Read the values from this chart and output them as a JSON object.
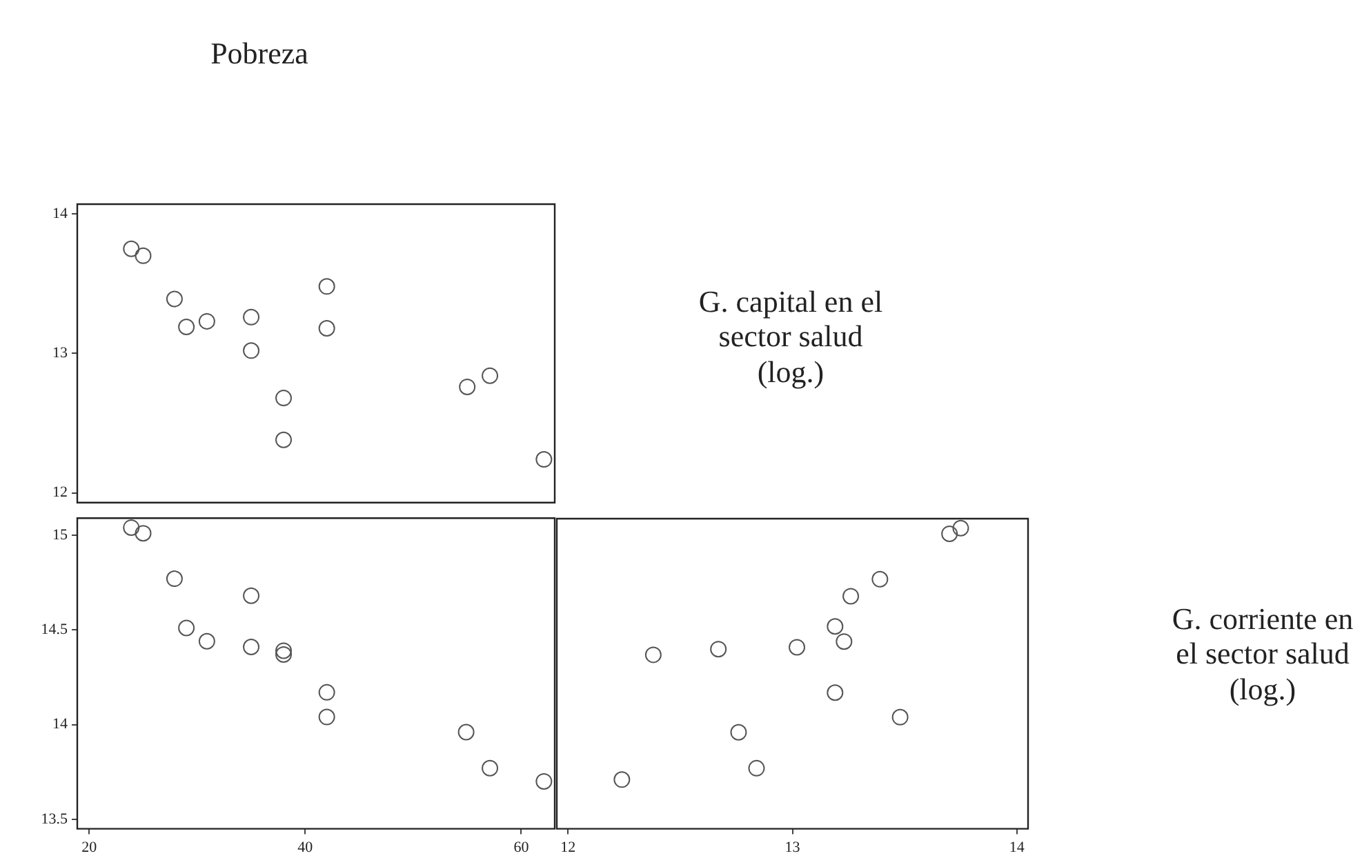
{
  "chart_data": [
    {
      "type": "scatter",
      "title": "Pobreza",
      "ylabel": "G. capital en el sector salud (log.)",
      "marker": "circle",
      "color": "#555555",
      "tick_labels": "y",
      "xlim": [
        18.9,
        63.1
      ],
      "xticks": [
        20,
        40,
        60
      ],
      "ylim": [
        11.93,
        14.07
      ],
      "yticks": [
        12,
        13,
        14
      ],
      "x": [
        23.9,
        25.0,
        27.9,
        29.0,
        30.9,
        35.0,
        35.0,
        38.0,
        38.0,
        42.0,
        42.0,
        55.0,
        57.1,
        62.1
      ],
      "values": [
        13.75,
        13.7,
        13.39,
        13.19,
        13.23,
        13.26,
        13.02,
        12.68,
        12.38,
        13.48,
        13.18,
        12.76,
        12.84,
        12.24
      ]
    },
    {
      "type": "scatter",
      "marker": "circle",
      "color": "#555555",
      "xlim": [
        18.9,
        63.1
      ],
      "xticks": [
        20,
        40,
        60
      ],
      "ylim": [
        13.45,
        15.09
      ],
      "yticks": [
        13.5,
        14,
        14.5,
        15
      ],
      "x": [
        23.9,
        25.0,
        27.9,
        29.0,
        30.9,
        35.0,
        35.0,
        38.0,
        38.0,
        42.0,
        42.0,
        54.9,
        57.1,
        62.1
      ],
      "values": [
        15.04,
        15.01,
        14.77,
        14.51,
        14.44,
        14.68,
        14.41,
        14.39,
        14.37,
        14.17,
        14.04,
        13.96,
        13.77,
        13.7
      ]
    },
    {
      "type": "scatter",
      "ylabel": "G. corriente en el sector salud (log.)",
      "marker": "circle",
      "color": "#555555",
      "tick_labels": "x",
      "xlim": [
        11.95,
        14.05
      ],
      "xticks": [
        12,
        13,
        14
      ],
      "ylim": [
        13.45,
        15.09
      ],
      "yticks": [
        13.5,
        14,
        14.5,
        15
      ],
      "x": [
        13.7,
        13.75,
        13.39,
        13.26,
        13.19,
        13.23,
        12.38,
        12.67,
        13.02,
        13.19,
        13.48,
        12.76,
        12.84,
        12.24
      ],
      "values": [
        15.01,
        15.04,
        14.77,
        14.68,
        14.52,
        14.44,
        14.37,
        14.4,
        14.41,
        14.17,
        14.04,
        13.96,
        13.77,
        13.71
      ]
    }
  ]
}
